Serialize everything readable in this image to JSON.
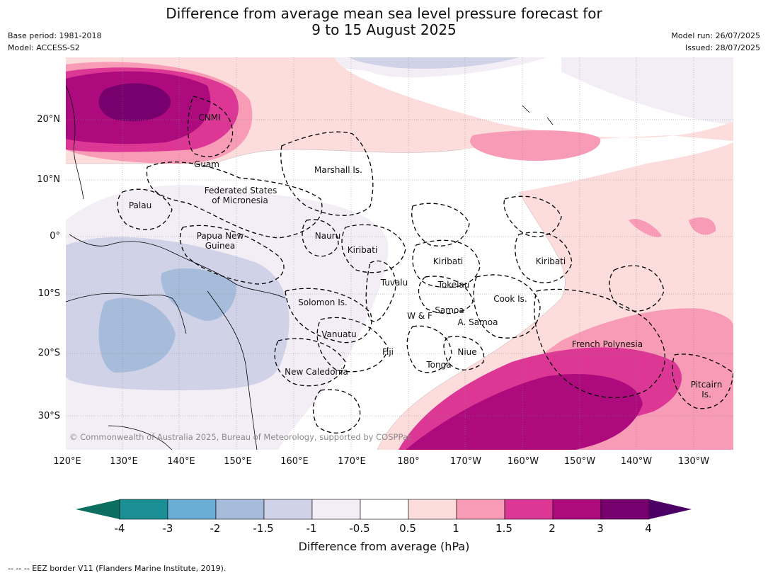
{
  "title_line1": "Difference from average mean sea level pressure forecast for",
  "title_line2": "9 to 15 August 2025",
  "base_period": "Base period: 1981-2018",
  "model": "Model: ACCESS-S2",
  "model_run": "Model run: 26/07/2025",
  "issued": "Issued: 28/07/2025",
  "copyright": "© Commonwealth of Australia 2025, Bureau of Meteorology, supported by COSPPac",
  "colorbar_title": "Difference from average (hPa)",
  "footnote": "--  --  -- EEZ border V11 (Flanders Marine Institute, 2019).",
  "lon_labels": [
    "120°E",
    "130°E",
    "140°E",
    "150°E",
    "160°E",
    "170°E",
    "180°",
    "170°W",
    "160°W",
    "150°W",
    "140°W",
    "130°W"
  ],
  "lat_labels": [
    "20°N",
    "10°N",
    "0°",
    "10°S",
    "20°S",
    "30°S"
  ],
  "colorbar_ticks": [
    "-4",
    "-3",
    "-2",
    "-1.5",
    "-1",
    "-0.5",
    "0.5",
    "1",
    "1.5",
    "2",
    "3",
    "4"
  ],
  "colorbar_colors": [
    "#1a9095",
    "#6aaed6",
    "#a6bcda",
    "#d0d2e7",
    "#f3eef6",
    "#ffffff",
    "#fddcdc",
    "#f89bb6",
    "#dd3796",
    "#ad0a7d",
    "#78006e"
  ],
  "colorbar_ends": {
    "low": "#0b6e5f",
    "high": "#4c0065"
  },
  "region_labels": {
    "cnmi": "CNMI",
    "guam": "Guam",
    "marshall": "Marshall Is.",
    "fsm1": "Federated States",
    "fsm2": "of Micronesia",
    "palau": "Palau",
    "png1": "Papua New",
    "png2": "Guinea",
    "nauru": "Nauru",
    "kiribati_w": "Kiribati",
    "kiribati_c": "Kiribati",
    "kiribati_e": "Kiribati",
    "tuvalu": "Tuvalu",
    "tokelau": "Tokelau",
    "solomon": "Solomon Is.",
    "cook": "Cook Is.",
    "samoa": "Samoa",
    "wf": "W & F",
    "asamoa": "A. Samoa",
    "vanuatu": "Vanuatu",
    "fiji": "Fiji",
    "niue": "Niue",
    "tonga": "Tonga",
    "newcal": "New Caledonia",
    "frpoly": "French Polynesia",
    "pitcairn1": "Pitcairn",
    "pitcairn2": "Is."
  }
}
